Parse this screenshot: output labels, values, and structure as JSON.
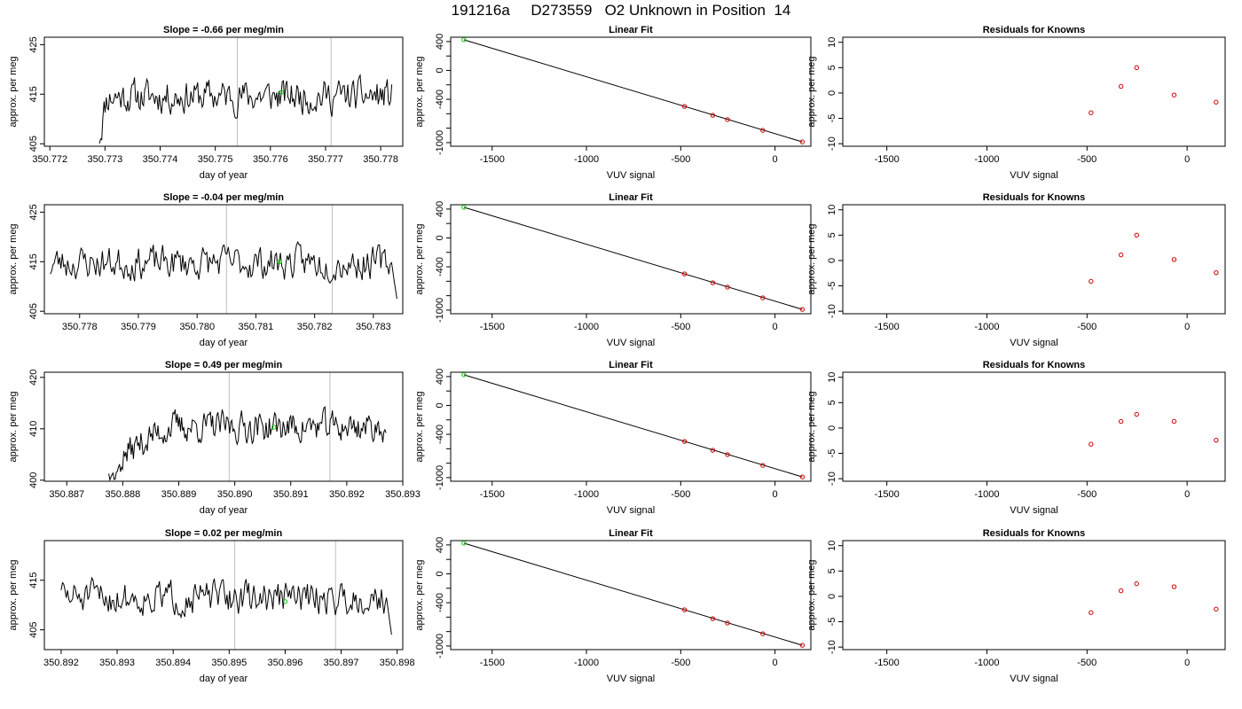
{
  "title": "191216a     D273559   O2 Unknown in Position  14",
  "colors": {
    "trace": "#000000",
    "grid": "#bebebe",
    "unknown": "#00cc00",
    "known": "#cc0000",
    "fit": "#000000"
  },
  "chart_data": [
    {
      "id": "r1-timeseries",
      "type": "line",
      "title": "Slope =  -0.66  per meg/min",
      "xlabel": "day of year",
      "ylabel": "approx. per meg",
      "xlim": [
        350.7719,
        350.7784
      ],
      "ylim": [
        404.5,
        426.5
      ],
      "xticks": [
        "350.772",
        "350.773",
        "350.774",
        "350.775",
        "350.776",
        "350.777",
        "350.778"
      ],
      "yticks": [
        "405",
        "415",
        "425"
      ],
      "vlines": [
        350.7754,
        350.7771
      ],
      "x": [
        350.7729,
        350.7782
      ],
      "start_value": 404.5,
      "rise_end": 350.77305,
      "mean": 414.6,
      "noise": 1.8,
      "seed": 11,
      "series": [],
      "unknown_point": {
        "x": 350.7762,
        "y": 415.4
      }
    },
    {
      "id": "r1-fit",
      "type": "scatter",
      "title": "Linear Fit",
      "xlabel": "VUV signal",
      "ylabel": "approx. per meg",
      "xlim": [
        -1720,
        190
      ],
      "ylim": [
        -1050,
        460
      ],
      "xticks": [
        -1500,
        -1000,
        -500,
        0
      ],
      "yticks": [
        400,
        0,
        -400,
        -1000
      ],
      "yticks_minor": [
        200,
        -200,
        -600,
        -800
      ],
      "fit_line": [
        [
          -1650,
          425
        ],
        [
          145,
          -990
        ]
      ],
      "unknown_point": [
        -1650,
        425
      ],
      "known_points": [
        [
          -480,
          -498
        ],
        [
          -330,
          -621
        ],
        [
          -252,
          -681
        ],
        [
          -65,
          -830
        ],
        [
          145,
          -990
        ]
      ]
    },
    {
      "id": "r1-resid",
      "type": "scatter",
      "title": "Residuals for Knowns",
      "xlabel": "VUV signal",
      "ylabel": "approx. per meg",
      "xlim": [
        -1720,
        190
      ],
      "ylim": [
        -10.5,
        11
      ],
      "xticks": [
        -1500,
        -1000,
        -500,
        0
      ],
      "yticks": [
        10,
        5,
        0,
        -5,
        -10
      ],
      "points": [
        [
          -480,
          -3.9
        ],
        [
          -330,
          1.3
        ],
        [
          -252,
          5.0
        ],
        [
          -65,
          -0.4
        ],
        [
          145,
          -1.8
        ]
      ]
    },
    {
      "id": "r2-timeseries",
      "type": "line",
      "title": "Slope =  -0.04  per meg/min",
      "xlabel": "day of year",
      "ylabel": "approx. per meg",
      "xlim": [
        350.7774,
        350.7835
      ],
      "ylim": [
        404.5,
        426.5
      ],
      "xticks": [
        "350.778",
        "350.779",
        "350.780",
        "350.781",
        "350.782",
        "350.783"
      ],
      "yticks": [
        "405",
        "415",
        "425"
      ],
      "vlines": [
        350.7805,
        350.7823
      ],
      "x": [
        350.7775,
        350.7834
      ],
      "start_value": 412.5,
      "rise_end": null,
      "mean": 414.8,
      "noise": 1.8,
      "seed": 23,
      "end_drop": 407.5,
      "series": [],
      "unknown_point": {
        "x": 350.7814,
        "y": 415.0
      }
    },
    {
      "id": "r2-fit",
      "type": "scatter",
      "title": "Linear Fit",
      "xlabel": "VUV signal",
      "ylabel": "approx. per meg",
      "xlim": [
        -1720,
        190
      ],
      "ylim": [
        -1050,
        460
      ],
      "xticks": [
        -1500,
        -1000,
        -500,
        0
      ],
      "yticks": [
        400,
        0,
        -400,
        -1000
      ],
      "yticks_minor": [
        200,
        -200,
        -600,
        -800
      ],
      "fit_line": [
        [
          -1650,
          425
        ],
        [
          145,
          -990
        ]
      ],
      "unknown_point": [
        -1650,
        425
      ],
      "known_points": [
        [
          -480,
          -498
        ],
        [
          -330,
          -621
        ],
        [
          -252,
          -681
        ],
        [
          -65,
          -830
        ],
        [
          145,
          -990
        ]
      ]
    },
    {
      "id": "r2-resid",
      "type": "scatter",
      "title": "Residuals for Knowns",
      "xlabel": "VUV signal",
      "ylabel": "approx. per meg",
      "xlim": [
        -1720,
        190
      ],
      "ylim": [
        -10.5,
        11
      ],
      "xticks": [
        -1500,
        -1000,
        -500,
        0
      ],
      "yticks": [
        10,
        5,
        0,
        -5,
        -10
      ],
      "points": [
        [
          -480,
          -4.1
        ],
        [
          -330,
          1.1
        ],
        [
          -252,
          5.0
        ],
        [
          -65,
          0.2
        ],
        [
          145,
          -2.4
        ]
      ]
    },
    {
      "id": "r3-timeseries",
      "type": "line",
      "title": "Slope =  0.49  per meg/min",
      "xlabel": "day of year",
      "ylabel": "approx. per meg",
      "xlim": [
        350.8866,
        350.893
      ],
      "ylim": [
        399.8,
        421.0
      ],
      "xticks": [
        "350.887",
        "350.888",
        "350.889",
        "350.890",
        "350.891",
        "350.892",
        "350.893"
      ],
      "yticks": [
        "400",
        "410",
        "420"
      ],
      "vlines": [
        350.8899,
        350.8917
      ],
      "x": [
        350.88775,
        350.8927
      ],
      "start_value": 400.0,
      "rise_end": 350.8891,
      "mean": 410.4,
      "noise": 1.6,
      "seed": 37,
      "series": [],
      "unknown_point": {
        "x": 350.8907,
        "y": 410.3
      }
    },
    {
      "id": "r3-fit",
      "type": "scatter",
      "title": "Linear Fit",
      "xlabel": "VUV signal",
      "ylabel": "approx. per meg",
      "xlim": [
        -1720,
        190
      ],
      "ylim": [
        -1050,
        460
      ],
      "xticks": [
        -1500,
        -1000,
        -500,
        0
      ],
      "yticks": [
        400,
        0,
        -400,
        -1000
      ],
      "yticks_minor": [
        200,
        -200,
        -600,
        -800
      ],
      "fit_line": [
        [
          -1650,
          425
        ],
        [
          145,
          -990
        ]
      ],
      "unknown_point": [
        -1650,
        425
      ],
      "known_points": [
        [
          -480,
          -498
        ],
        [
          -330,
          -621
        ],
        [
          -252,
          -681
        ],
        [
          -65,
          -830
        ],
        [
          145,
          -990
        ]
      ]
    },
    {
      "id": "r3-resid",
      "type": "scatter",
      "title": "Residuals for Knowns",
      "xlabel": "VUV signal",
      "ylabel": "approx. per meg",
      "xlim": [
        -1720,
        190
      ],
      "ylim": [
        -10.5,
        11
      ],
      "xticks": [
        -1500,
        -1000,
        -500,
        0
      ],
      "yticks": [
        10,
        5,
        0,
        -5,
        -10
      ],
      "points": [
        [
          -480,
          -3.2
        ],
        [
          -330,
          1.3
        ],
        [
          -252,
          2.7
        ],
        [
          -65,
          1.3
        ],
        [
          145,
          -2.4
        ]
      ]
    },
    {
      "id": "r4-timeseries",
      "type": "line",
      "title": "Slope =  0.02  per meg/min",
      "xlabel": "day of year",
      "ylabel": "approx. per meg",
      "xlim": [
        350.8917,
        350.8981
      ],
      "ylim": [
        401.0,
        423.0
      ],
      "xticks": [
        "350.892",
        "350.893",
        "350.894",
        "350.895",
        "350.896",
        "350.897",
        "350.898"
      ],
      "yticks": [
        "405",
        "415"
      ],
      "vlines": [
        350.8951,
        350.8969
      ],
      "x": [
        350.892,
        350.8979
      ],
      "start_value": 413.0,
      "rise_end": null,
      "mean": 411.5,
      "noise": 1.8,
      "seed": 51,
      "end_drop": 404.0,
      "series": [],
      "unknown_point": {
        "x": 350.896,
        "y": 410.7
      }
    },
    {
      "id": "r4-fit",
      "type": "scatter",
      "title": "Linear Fit",
      "xlabel": "VUV signal",
      "ylabel": "approx. per meg",
      "xlim": [
        -1720,
        190
      ],
      "ylim": [
        -1050,
        460
      ],
      "xticks": [
        -1500,
        -1000,
        -500,
        0
      ],
      "yticks": [
        400,
        0,
        -400,
        -1000
      ],
      "yticks_minor": [
        200,
        -200,
        -600,
        -800
      ],
      "fit_line": [
        [
          -1650,
          425
        ],
        [
          145,
          -990
        ]
      ],
      "unknown_point": [
        -1650,
        425
      ],
      "known_points": [
        [
          -480,
          -498
        ],
        [
          -330,
          -621
        ],
        [
          -252,
          -681
        ],
        [
          -65,
          -830
        ],
        [
          145,
          -990
        ]
      ]
    },
    {
      "id": "r4-resid",
      "type": "scatter",
      "title": "Residuals for Knowns",
      "xlabel": "VUV signal",
      "ylabel": "approx. per meg",
      "xlim": [
        -1720,
        190
      ],
      "ylim": [
        -10.5,
        11
      ],
      "xticks": [
        -1500,
        -1000,
        -500,
        0
      ],
      "yticks": [
        10,
        5,
        0,
        -5,
        -10
      ],
      "points": [
        [
          -480,
          -3.2
        ],
        [
          -330,
          1.1
        ],
        [
          -252,
          2.5
        ],
        [
          -65,
          1.9
        ],
        [
          145,
          -2.5
        ]
      ]
    }
  ]
}
